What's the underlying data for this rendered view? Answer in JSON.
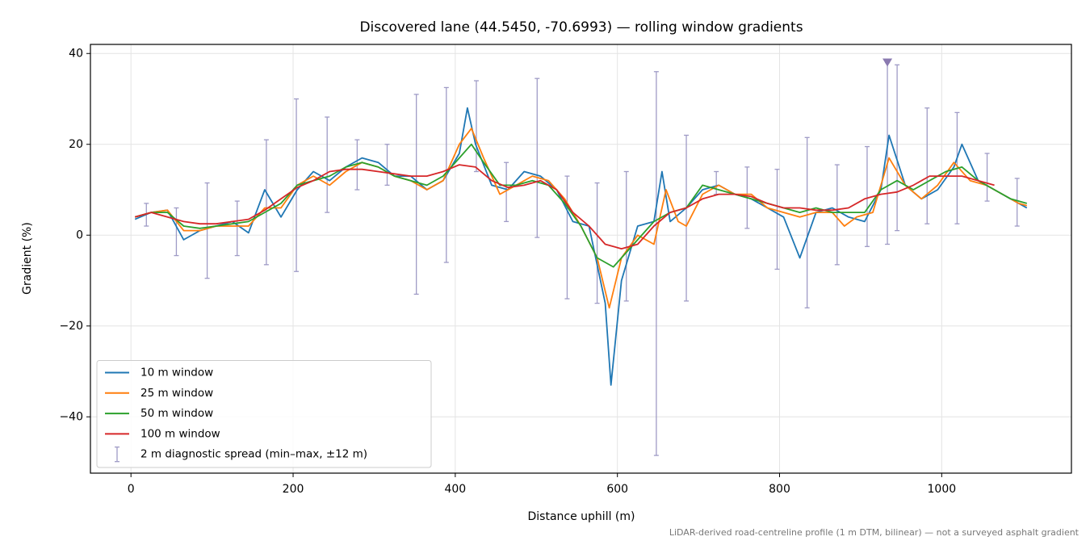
{
  "chart_data": {
    "type": "line",
    "title": "Discovered lane (44.5450, -70.6993) — rolling window gradients",
    "x_label": "Distance uphill (m)",
    "y_label": "Gradient (%)",
    "footnote": "LiDAR-derived road-centreline profile (1 m DTM, bilinear) — not a surveyed asphalt gradient",
    "xlim": [
      -50,
      1160
    ],
    "ylim": [
      -52.4,
      42
    ],
    "xticks": [
      0,
      200,
      400,
      600,
      800,
      1000
    ],
    "yticks": [
      {
        "value": -40,
        "label": "−40"
      },
      {
        "value": -20,
        "label": "−20"
      },
      0,
      20,
      40
    ],
    "grid": true,
    "legend": "lower left",
    "series": [
      {
        "name": "10 m window",
        "color": "#1f77b4",
        "x": [
          5,
          25,
          45,
          65,
          85,
          105,
          125,
          145,
          165,
          185,
          205,
          225,
          245,
          265,
          285,
          305,
          325,
          345,
          365,
          385,
          405,
          415,
          425,
          445,
          465,
          485,
          505,
          525,
          545,
          565,
          585,
          592,
          605,
          625,
          645,
          655,
          665,
          685,
          705,
          725,
          745,
          765,
          785,
          805,
          825,
          845,
          865,
          885,
          905,
          925,
          935,
          955,
          975,
          995,
          1015,
          1025,
          1045,
          1065,
          1085,
          1105
        ],
        "values": [
          3.5,
          5,
          5.5,
          -1,
          1,
          2,
          3,
          0.5,
          10,
          4,
          10,
          14,
          12,
          15,
          17,
          16,
          13,
          13,
          10,
          12,
          18,
          28,
          20,
          11,
          10,
          14,
          13,
          10,
          3,
          2,
          -15,
          -33,
          -10,
          2,
          3,
          14,
          3,
          6,
          10,
          11,
          9,
          8,
          6,
          4,
          -5,
          5,
          6,
          4,
          3,
          10,
          22,
          11,
          8,
          10,
          15,
          20,
          12,
          10,
          8,
          6
        ]
      },
      {
        "name": "25 m window",
        "color": "#ff7f0e",
        "x": [
          5,
          25,
          45,
          65,
          85,
          105,
          125,
          145,
          165,
          185,
          205,
          225,
          245,
          265,
          285,
          305,
          325,
          345,
          365,
          385,
          405,
          420,
          435,
          455,
          475,
          495,
          515,
          535,
          555,
          575,
          590,
          605,
          625,
          645,
          660,
          675,
          685,
          705,
          725,
          745,
          765,
          785,
          805,
          825,
          845,
          865,
          880,
          895,
          915,
          935,
          955,
          975,
          995,
          1015,
          1035,
          1055,
          1075,
          1095,
          1105
        ],
        "values": [
          4,
          5,
          5.5,
          1,
          1,
          2,
          2,
          2,
          6,
          6,
          11,
          13,
          11,
          14,
          16,
          15,
          13,
          12,
          10,
          12,
          20,
          23.5,
          17,
          9,
          11,
          13,
          12,
          8,
          2,
          -5,
          -16,
          -5,
          0,
          -2,
          10,
          3,
          2,
          9,
          11,
          9,
          9,
          6,
          5,
          4,
          5,
          5,
          2,
          4,
          5,
          17,
          11,
          8,
          11,
          16,
          12,
          11,
          9,
          7,
          6.5
        ]
      },
      {
        "name": "50 m window",
        "color": "#2ca02c",
        "x": [
          5,
          25,
          45,
          65,
          85,
          105,
          125,
          145,
          165,
          185,
          205,
          225,
          245,
          265,
          285,
          305,
          325,
          345,
          365,
          385,
          405,
          420,
          435,
          455,
          475,
          495,
          515,
          535,
          555,
          575,
          595,
          605,
          625,
          645,
          665,
          685,
          705,
          725,
          745,
          765,
          785,
          805,
          825,
          845,
          865,
          885,
          905,
          925,
          945,
          965,
          985,
          1005,
          1025,
          1045,
          1065,
          1085,
          1105
        ],
        "values": [
          4,
          5,
          5,
          2,
          1.5,
          2,
          2.5,
          3,
          5,
          7,
          11,
          12,
          13,
          15,
          16,
          15,
          13,
          12,
          11,
          13,
          17,
          20,
          16,
          11,
          11,
          12,
          11,
          7,
          2,
          -5,
          -7,
          -5,
          -1,
          3,
          5,
          6,
          11,
          10,
          9,
          8,
          7,
          6,
          5,
          6,
          5,
          5,
          5,
          10,
          12,
          10,
          12,
          14,
          15,
          12,
          10,
          8,
          7
        ]
      },
      {
        "name": "100 m window",
        "color": "#d62728",
        "x": [
          5,
          25,
          45,
          65,
          85,
          105,
          125,
          145,
          165,
          185,
          205,
          225,
          245,
          265,
          285,
          305,
          325,
          345,
          365,
          385,
          405,
          425,
          445,
          465,
          485,
          505,
          525,
          545,
          565,
          585,
          605,
          625,
          645,
          665,
          685,
          705,
          725,
          745,
          765,
          785,
          805,
          825,
          845,
          865,
          885,
          905,
          925,
          945,
          965,
          985,
          1005,
          1025,
          1045,
          1065
        ],
        "values": [
          4,
          5,
          4,
          3,
          2.5,
          2.5,
          3,
          3.5,
          5.5,
          8,
          10.5,
          12,
          14,
          14.5,
          14.5,
          14,
          13.5,
          13,
          13,
          14,
          15.5,
          15,
          12,
          10.5,
          11,
          12,
          10,
          5,
          2,
          -2,
          -3,
          -2,
          2,
          5,
          6,
          8,
          9,
          9,
          8.5,
          7,
          6,
          6,
          5.5,
          5.5,
          6,
          8,
          9,
          9.5,
          11,
          13,
          13,
          13,
          12,
          11
        ]
      }
    ],
    "spread": {
      "name": "2 m diagnostic spread (min–max, ±12 m)",
      "color": "#9f9bc6",
      "x": [
        19,
        56,
        94,
        131,
        167,
        204,
        242,
        279,
        316,
        352,
        389,
        426,
        463,
        501,
        538,
        575,
        611,
        648,
        685,
        722,
        760,
        797,
        834,
        871,
        908,
        933,
        945,
        982,
        1019,
        1056,
        1093
      ],
      "min": [
        2,
        -4.5,
        -9.5,
        -4.5,
        -6.5,
        -8,
        5,
        10,
        11,
        -13,
        -6,
        14,
        3,
        -0.5,
        -14,
        -15,
        -14.5,
        -48.5,
        -14.5,
        9,
        1.5,
        -7.5,
        -16,
        -6.5,
        -2.5,
        -2,
        1,
        2.5,
        2.5,
        7.5,
        2
      ],
      "max": [
        7,
        6,
        11.5,
        7.5,
        21,
        30,
        26,
        21,
        20,
        31,
        32.5,
        34,
        16,
        34.5,
        13,
        11.5,
        14,
        36,
        22,
        14,
        15,
        14.5,
        21.5,
        15.5,
        19.5,
        38,
        37.5,
        28,
        27,
        18,
        12.5
      ]
    },
    "peak_marker": {
      "x": 933,
      "y": 38,
      "color": "#8a7ab0"
    }
  }
}
